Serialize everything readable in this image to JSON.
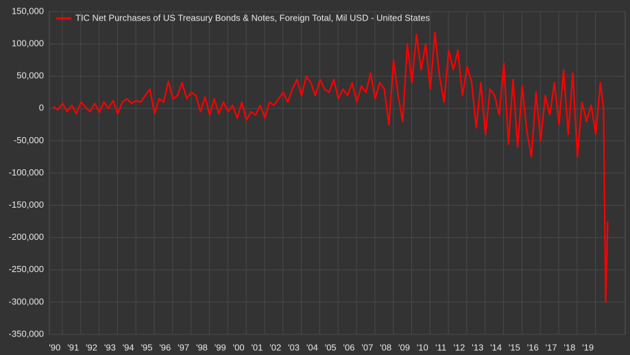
{
  "chart_data": {
    "type": "line",
    "x": [
      1990,
      1990.25,
      1990.5,
      1990.75,
      1991,
      1991.25,
      1991.5,
      1991.75,
      1992,
      1992.25,
      1992.5,
      1992.75,
      1993,
      1993.25,
      1993.5,
      1993.75,
      1994,
      1994.25,
      1994.5,
      1994.75,
      1995,
      1995.25,
      1995.5,
      1995.75,
      1996,
      1996.25,
      1996.5,
      1996.75,
      1997,
      1997.25,
      1997.5,
      1997.75,
      1998,
      1998.25,
      1998.5,
      1998.75,
      1999,
      1999.25,
      1999.5,
      1999.75,
      2000,
      2000.25,
      2000.5,
      2000.75,
      2001,
      2001.25,
      2001.5,
      2001.75,
      2002,
      2002.25,
      2002.5,
      2002.75,
      2003,
      2003.25,
      2003.5,
      2003.75,
      2004,
      2004.25,
      2004.5,
      2004.75,
      2005,
      2005.25,
      2005.5,
      2005.75,
      2006,
      2006.25,
      2006.5,
      2006.75,
      2007,
      2007.25,
      2007.5,
      2007.75,
      2008,
      2008.25,
      2008.5,
      2008.75,
      2009,
      2009.25,
      2009.5,
      2009.75,
      2010,
      2010.25,
      2010.5,
      2010.75,
      2011,
      2011.25,
      2011.5,
      2011.75,
      2012,
      2012.25,
      2012.5,
      2012.75,
      2013,
      2013.25,
      2013.5,
      2013.75,
      2014,
      2014.25,
      2014.5,
      2014.75,
      2015,
      2015.25,
      2015.5,
      2015.75,
      2016,
      2016.25,
      2016.5,
      2016.75,
      2017,
      2017.25,
      2017.5,
      2017.75,
      2018,
      2018.25,
      2018.5,
      2018.75,
      2019,
      2019.25,
      2019.5,
      2019.75,
      2019.92,
      2020.04,
      2020.15
    ],
    "series": [
      {
        "name": "TIC Net Purchases of US Treasury Bonds & Notes, Foreign Total, Mil USD - United States",
        "color": "#ff0000",
        "values": [
          3000,
          -2000,
          8000,
          -5000,
          5000,
          -8000,
          10000,
          2000,
          -5000,
          8000,
          -6000,
          10000,
          0,
          12000,
          -8000,
          10000,
          15000,
          8000,
          12000,
          10000,
          20000,
          30000,
          -8000,
          15000,
          10000,
          42000,
          15000,
          20000,
          40000,
          15000,
          25000,
          20000,
          -5000,
          18000,
          -10000,
          15000,
          -8000,
          10000,
          -5000,
          5000,
          -15000,
          10000,
          -18000,
          -5000,
          -10000,
          5000,
          -15000,
          10000,
          5000,
          15000,
          25000,
          10000,
          30000,
          45000,
          20000,
          50000,
          40000,
          20000,
          45000,
          30000,
          25000,
          45000,
          15000,
          30000,
          20000,
          40000,
          10000,
          35000,
          25000,
          55000,
          15000,
          40000,
          30000,
          -25000,
          75000,
          20000,
          -20000,
          100000,
          40000,
          115000,
          60000,
          100000,
          30000,
          118000,
          50000,
          10000,
          90000,
          60000,
          90000,
          20000,
          65000,
          40000,
          -30000,
          40000,
          -40000,
          30000,
          20000,
          -10000,
          70000,
          -55000,
          45000,
          -60000,
          35000,
          -35000,
          -75000,
          25000,
          -50000,
          20000,
          -10000,
          40000,
          -25000,
          60000,
          -40000,
          55000,
          -75000,
          10000,
          -20000,
          5000,
          -40000,
          40000,
          0,
          -300000,
          -175000
        ]
      }
    ],
    "xlim": [
      1989.78,
      2021.1
    ],
    "xticks": [
      {
        "value": 1990,
        "label": "'90"
      },
      {
        "value": 1991,
        "label": "'91"
      },
      {
        "value": 1992,
        "label": "'92"
      },
      {
        "value": 1993,
        "label": "'93"
      },
      {
        "value": 1994,
        "label": "'94"
      },
      {
        "value": 1995,
        "label": "'95"
      },
      {
        "value": 1996,
        "label": "'96"
      },
      {
        "value": 1997,
        "label": "'97"
      },
      {
        "value": 1998,
        "label": "'98"
      },
      {
        "value": 1999,
        "label": "'99"
      },
      {
        "value": 2000,
        "label": "'00"
      },
      {
        "value": 2001,
        "label": "'01"
      },
      {
        "value": 2002,
        "label": "'02"
      },
      {
        "value": 2003,
        "label": "'03"
      },
      {
        "value": 2004,
        "label": "'04"
      },
      {
        "value": 2005,
        "label": "'05"
      },
      {
        "value": 2006,
        "label": "'06"
      },
      {
        "value": 2007,
        "label": "'07"
      },
      {
        "value": 2008,
        "label": "'08"
      },
      {
        "value": 2009,
        "label": "'09"
      },
      {
        "value": 2010,
        "label": "'10"
      },
      {
        "value": 2011,
        "label": "'11"
      },
      {
        "value": 2012,
        "label": "'12"
      },
      {
        "value": 2013,
        "label": "'13"
      },
      {
        "value": 2014,
        "label": "'14"
      },
      {
        "value": 2015,
        "label": "'15"
      },
      {
        "value": 2016,
        "label": "'16"
      },
      {
        "value": 2017,
        "label": "'17"
      },
      {
        "value": 2018,
        "label": "'18"
      },
      {
        "value": 2019,
        "label": "'19"
      }
    ],
    "ylim": [
      -350000,
      150000
    ],
    "yticks": [
      {
        "value": -350000,
        "label": "-350,000"
      },
      {
        "value": -300000,
        "label": "-300,000"
      },
      {
        "value": -250000,
        "label": "-250,000"
      },
      {
        "value": -200000,
        "label": "-200,000"
      },
      {
        "value": -150000,
        "label": "-150,000"
      },
      {
        "value": -100000,
        "label": "-100,000"
      },
      {
        "value": -50000,
        "label": "-50,000"
      },
      0,
      {
        "value": 50000,
        "label": "50,000"
      },
      {
        "value": 100000,
        "label": "100,000"
      },
      {
        "value": 150000,
        "label": "150,000"
      }
    ],
    "grid": true,
    "legend": "upper-left"
  }
}
